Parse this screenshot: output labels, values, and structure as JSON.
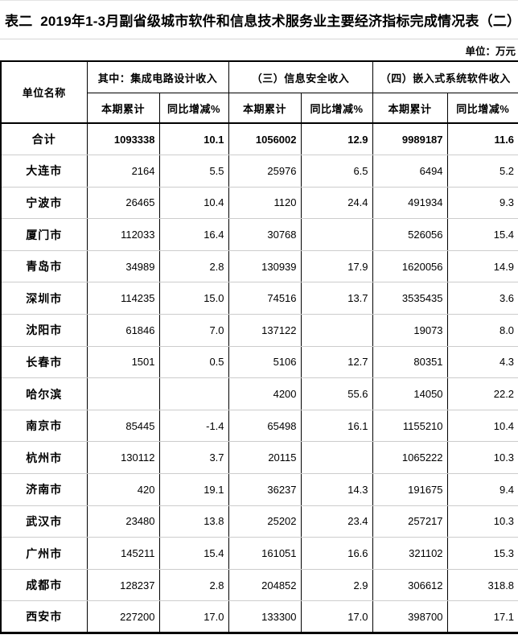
{
  "title": "表二  2019年1-3月副省级城市软件和信息技术服务业主要经济指标完成情况表（二）",
  "unit_label": "单位：万元",
  "table": {
    "col_city_header": "单位名称",
    "groups": [
      {
        "label": "其中：集成电路设计收入"
      },
      {
        "label": "（三）信息安全收入"
      },
      {
        "label": "（四）嵌入式系统软件收入"
      }
    ],
    "sub_headers": {
      "current": "本期累计",
      "yoy": "同比增减%"
    },
    "rows": [
      {
        "city": "合计",
        "bold": true,
        "values": [
          "1093338",
          "10.1",
          "1056002",
          "12.9",
          "9989187",
          "11.6"
        ]
      },
      {
        "city": "大连市",
        "bold": false,
        "values": [
          "2164",
          "5.5",
          "25976",
          "6.5",
          "6494",
          "5.2"
        ]
      },
      {
        "city": "宁波市",
        "bold": false,
        "values": [
          "26465",
          "10.4",
          "1120",
          "24.4",
          "491934",
          "9.3"
        ]
      },
      {
        "city": "厦门市",
        "bold": false,
        "values": [
          "112033",
          "16.4",
          "30768",
          "",
          "526056",
          "15.4"
        ]
      },
      {
        "city": "青岛市",
        "bold": false,
        "values": [
          "34989",
          "2.8",
          "130939",
          "17.9",
          "1620056",
          "14.9"
        ]
      },
      {
        "city": "深圳市",
        "bold": false,
        "values": [
          "114235",
          "15.0",
          "74516",
          "13.7",
          "3535435",
          "3.6"
        ]
      },
      {
        "city": "沈阳市",
        "bold": false,
        "values": [
          "61846",
          "7.0",
          "137122",
          "",
          "19073",
          "8.0"
        ]
      },
      {
        "city": "长春市",
        "bold": false,
        "values": [
          "1501",
          "0.5",
          "5106",
          "12.7",
          "80351",
          "4.3"
        ]
      },
      {
        "city": "哈尔滨",
        "bold": false,
        "values": [
          "",
          "",
          "4200",
          "55.6",
          "14050",
          "22.2"
        ]
      },
      {
        "city": "南京市",
        "bold": false,
        "values": [
          "85445",
          "-1.4",
          "65498",
          "16.1",
          "1155210",
          "10.4"
        ]
      },
      {
        "city": "杭州市",
        "bold": false,
        "values": [
          "130112",
          "3.7",
          "20115",
          "",
          "1065222",
          "10.3"
        ]
      },
      {
        "city": "济南市",
        "bold": false,
        "values": [
          "420",
          "19.1",
          "36237",
          "14.3",
          "191675",
          "9.4"
        ]
      },
      {
        "city": "武汉市",
        "bold": false,
        "values": [
          "23480",
          "13.8",
          "25202",
          "23.4",
          "257217",
          "10.3"
        ]
      },
      {
        "city": "广州市",
        "bold": false,
        "values": [
          "145211",
          "15.4",
          "161051",
          "16.6",
          "321102",
          "15.3"
        ]
      },
      {
        "city": "成都市",
        "bold": false,
        "values": [
          "128237",
          "2.8",
          "204852",
          "2.9",
          "306612",
          "318.8"
        ]
      },
      {
        "city": "西安市",
        "bold": false,
        "values": [
          "227200",
          "17.0",
          "133300",
          "17.0",
          "398700",
          "17.1"
        ]
      }
    ]
  }
}
